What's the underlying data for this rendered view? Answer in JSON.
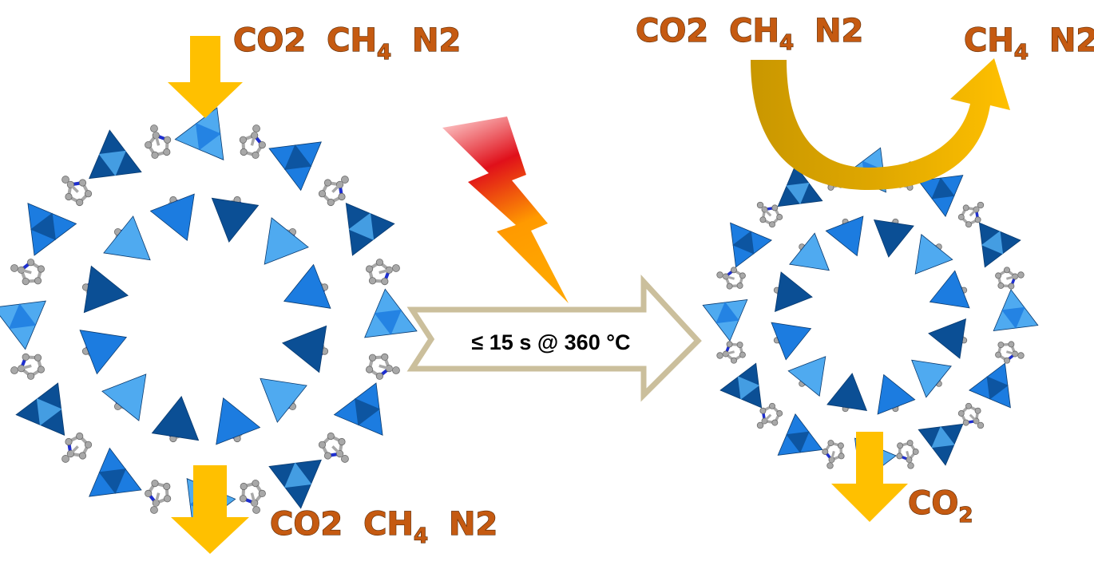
{
  "colors": {
    "flow_arrow": "#ffc000",
    "flow_arrow_dark": "#c99700",
    "process_arrow_fill": "#ffffff",
    "process_arrow_stroke": "#cbbf9c",
    "gas_label": "#c55a11",
    "tetra_light": "#4faaf0",
    "tetra_mid": "#1c7ce0",
    "tetra_dark": "#0b4f95",
    "atom": "#a8a8a8",
    "bond_n": "#1e2fd0"
  },
  "icons": [
    "down-arrow",
    "lightning-bolt",
    "process-arrow",
    "curved-arrow"
  ],
  "left_panel": {
    "top_label": {
      "co2": "CO",
      "co2_sub": "2",
      "ch4": "CH",
      "ch4_sub": "4",
      "n2": "N",
      "n2_sub": "2"
    },
    "bottom_label": {
      "co2": "CO",
      "co2_sub": "2",
      "ch4": "CH",
      "ch4_sub": "4",
      "n2": "N",
      "n2_sub": "2"
    }
  },
  "process": {
    "condition": "≤ 15 s @ 360 °C"
  },
  "right_panel": {
    "in_label": {
      "co2": "CO",
      "co2_sub": "2",
      "ch4": "CH",
      "ch4_sub": "4",
      "n2": "N",
      "n2_sub": "2"
    },
    "out_label": {
      "ch4": "CH",
      "ch4_sub": "4",
      "n2": "N",
      "n2_sub": "2"
    },
    "bottom_label": {
      "co2": "CO",
      "co2_sub": "2"
    }
  }
}
